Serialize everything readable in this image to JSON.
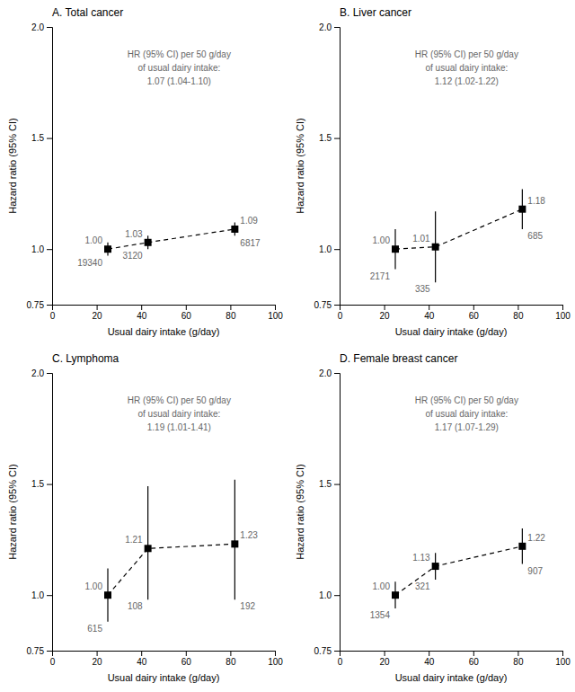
{
  "chart_data": [
    {
      "type": "line",
      "title": "A. Total cancer",
      "xlabel": "Usual dairy intake (g/day)",
      "ylabel": "Hazard ratio (95% CI)",
      "annotation": "HR (95% CI) per 50 g/day\nof usual dairy intake:\n1.07 (1.04-1.10)",
      "x": [
        25,
        43,
        82
      ],
      "values": [
        1.0,
        1.03,
        1.09
      ],
      "lower": [
        0.97,
        1.0,
        1.06
      ],
      "upper": [
        1.03,
        1.06,
        1.12
      ],
      "value_labels": [
        "1.00",
        "1.03",
        "1.09"
      ],
      "data_labels": true,
      "counts": [
        19340,
        3120,
        6817
      ],
      "color": "black",
      "marker": "square",
      "line_style": "dashed",
      "xlim": [
        0,
        100
      ],
      "xticks": [
        0,
        20,
        40,
        60,
        80,
        100
      ],
      "ylim": [
        0.75,
        2.0
      ],
      "yticks": [
        0.75,
        {
          "value": 1.0,
          "label": "1.0"
        },
        {
          "value": 1.5,
          "label": "1.5"
        },
        {
          "value": 2.0,
          "label": "2.0"
        }
      ]
    },
    {
      "type": "line",
      "title": "B. Liver cancer",
      "xlabel": "Usual dairy intake (g/day)",
      "ylabel": "Hazard ratio (95% CI)",
      "annotation": "HR (95% CI) per 50 g/day\nof usual dairy intake:\n1.12 (1.02-1.22)",
      "x": [
        25,
        43,
        82
      ],
      "values": [
        1.0,
        1.01,
        1.18
      ],
      "lower": [
        0.91,
        0.85,
        1.09
      ],
      "upper": [
        1.09,
        1.17,
        1.27
      ],
      "value_labels": [
        "1.00",
        "1.01",
        "1.18"
      ],
      "data_labels": true,
      "counts": [
        2171,
        335,
        685
      ],
      "color": "black",
      "marker": "square",
      "line_style": "dashed",
      "xlim": [
        0,
        100
      ],
      "xticks": [
        0,
        20,
        40,
        60,
        80,
        100
      ],
      "ylim": [
        0.75,
        2.0
      ],
      "yticks": [
        0.75,
        {
          "value": 1.0,
          "label": "1.0"
        },
        {
          "value": 1.5,
          "label": "1.5"
        },
        {
          "value": 2.0,
          "label": "2.0"
        }
      ]
    },
    {
      "type": "line",
      "title": "C. Lymphoma",
      "xlabel": "Usual dairy intake (g/day)",
      "ylabel": "Hazard ratio (95% CI)",
      "annotation": "HR (95% CI) per 50 g/day\nof usual dairy intake:\n1.19 (1.01-1.41)",
      "x": [
        25,
        43,
        82
      ],
      "values": [
        1.0,
        1.21,
        1.23
      ],
      "lower": [
        0.88,
        0.98,
        0.98
      ],
      "upper": [
        1.12,
        1.49,
        1.52
      ],
      "value_labels": [
        "1.00",
        "1.21",
        "1.23"
      ],
      "data_labels": true,
      "counts": [
        615,
        108,
        192
      ],
      "color": "black",
      "marker": "square",
      "line_style": "dashed",
      "xlim": [
        0,
        100
      ],
      "xticks": [
        0,
        20,
        40,
        60,
        80,
        100
      ],
      "ylim": [
        0.75,
        2.0
      ],
      "yticks": [
        0.75,
        {
          "value": 1.0,
          "label": "1.0"
        },
        {
          "value": 1.5,
          "label": "1.5"
        },
        {
          "value": 2.0,
          "label": "2.0"
        }
      ]
    },
    {
      "type": "line",
      "title": "D. Female breast cancer",
      "xlabel": "Usual dairy intake (g/day)",
      "ylabel": "Hazard ratio (95% CI)",
      "annotation": "HR (95% CI) per 50 g/day\nof usual dairy intake:\n1.17 (1.07-1.29)",
      "x": [
        25,
        43,
        82
      ],
      "values": [
        1.0,
        1.13,
        1.22
      ],
      "lower": [
        0.94,
        1.07,
        1.14
      ],
      "upper": [
        1.06,
        1.19,
        1.3
      ],
      "value_labels": [
        "1.00",
        "1.13",
        "1.22"
      ],
      "data_labels": true,
      "counts": [
        1354,
        321,
        907
      ],
      "color": "black",
      "marker": "square",
      "line_style": "dashed",
      "xlim": [
        0,
        100
      ],
      "xticks": [
        0,
        20,
        40,
        60,
        80,
        100
      ],
      "ylim": [
        0.75,
        2.0
      ],
      "yticks": [
        0.75,
        {
          "value": 1.0,
          "label": "1.0"
        },
        {
          "value": 1.5,
          "label": "1.5"
        },
        {
          "value": 2.0,
          "label": "2.0"
        }
      ]
    }
  ]
}
